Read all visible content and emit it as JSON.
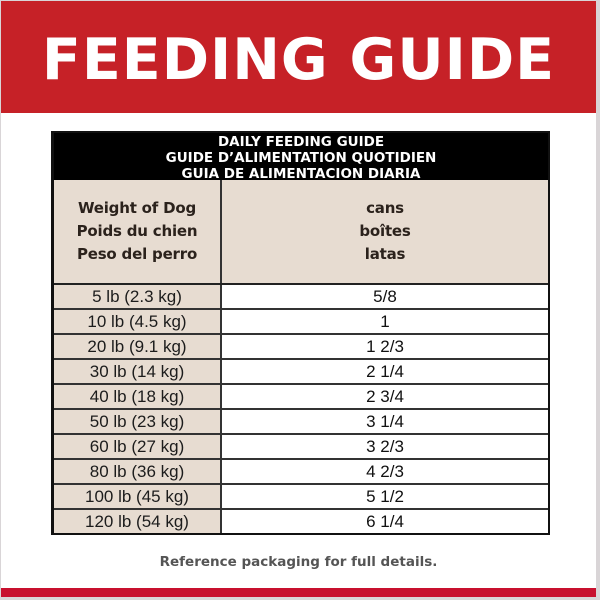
{
  "banner": {
    "title": "FEEDING GUIDE",
    "color": "#c62127"
  },
  "table": {
    "heading_lines": [
      "DAILY FEEDING GUIDE",
      "GUIDE D’ALIMENTATION QUOTIDIEN",
      "GUIA DE ALIMENTACION DIARIA"
    ],
    "column_headers": {
      "weight": [
        "Weight of Dog",
        "Poids du chien",
        "Peso del perro"
      ],
      "amount": [
        "cans",
        "boîtes",
        "latas"
      ]
    },
    "rows": [
      {
        "weight": "5 lb (2.3 kg)",
        "cans": "5/8"
      },
      {
        "weight": "10 lb (4.5 kg)",
        "cans": "1"
      },
      {
        "weight": "20 lb (9.1 kg)",
        "cans": "1 2/3"
      },
      {
        "weight": "30 lb (14 kg)",
        "cans": "2 1/4"
      },
      {
        "weight": "40 lb (18 kg)",
        "cans": "2 3/4"
      },
      {
        "weight": "50 lb (23 kg)",
        "cans": "3 1/4"
      },
      {
        "weight": "60 lb (27 kg)",
        "cans": "3 2/3"
      },
      {
        "weight": "80 lb (36 kg)",
        "cans": "4 2/3"
      },
      {
        "weight": "100 lb (45 kg)",
        "cans": "5 1/2"
      },
      {
        "weight": "120 lb (54 kg)",
        "cans": "6 1/4"
      }
    ],
    "header_bg": "#000000",
    "label_bg": "#e7dcd1"
  },
  "footer": {
    "note": "Reference packaging for full details.",
    "strip_color": "#c8102e"
  }
}
